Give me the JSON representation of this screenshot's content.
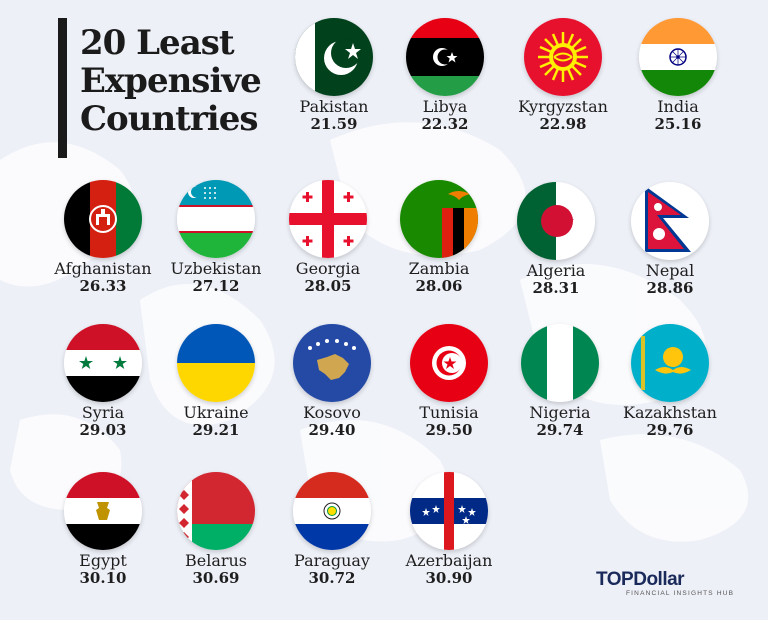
{
  "title": {
    "line1": "20 Least",
    "line2": "Expensive",
    "line3": "Countries"
  },
  "countries": [
    {
      "name": "Pakistan",
      "value": "21.59",
      "flag": "pakistan-flag-icon"
    },
    {
      "name": "Libya",
      "value": "22.32",
      "flag": "libya-flag-icon"
    },
    {
      "name": "Kyrgyzstan",
      "value": "22.98",
      "flag": "kyrgyzstan-flag-icon"
    },
    {
      "name": "India",
      "value": "25.16",
      "flag": "india-flag-icon"
    },
    {
      "name": "Afghanistan",
      "value": "26.33",
      "flag": "afghanistan-flag-icon"
    },
    {
      "name": "Uzbekistan",
      "value": "27.12",
      "flag": "uzbekistan-flag-icon"
    },
    {
      "name": "Georgia",
      "value": "28.05",
      "flag": "georgia-flag-icon"
    },
    {
      "name": "Zambia",
      "value": "28.06",
      "flag": "zambia-flag-icon"
    },
    {
      "name": "Algeria",
      "value": "28.31",
      "flag": "algeria-flag-icon"
    },
    {
      "name": "Nepal",
      "value": "28.86",
      "flag": "nepal-flag-icon"
    },
    {
      "name": "Syria",
      "value": "29.03",
      "flag": "syria-flag-icon"
    },
    {
      "name": "Ukraine",
      "value": "29.21",
      "flag": "ukraine-flag-icon"
    },
    {
      "name": "Kosovo",
      "value": "29.40",
      "flag": "kosovo-flag-icon"
    },
    {
      "name": "Tunisia",
      "value": "29.50",
      "flag": "tunisia-flag-icon"
    },
    {
      "name": "Nigeria",
      "value": "29.74",
      "flag": "nigeria-flag-icon"
    },
    {
      "name": "Kazakhstan",
      "value": "29.76",
      "flag": "kazakhstan-flag-icon"
    },
    {
      "name": "Egypt",
      "value": "30.10",
      "flag": "egypt-flag-icon"
    },
    {
      "name": "Belarus",
      "value": "30.69",
      "flag": "belarus-flag-icon"
    },
    {
      "name": "Paraguay",
      "value": "30.72",
      "flag": "paraguay-flag-icon"
    },
    {
      "name": "Azerbaijan",
      "value": "30.90",
      "flag": "azerbaijan-flag-icon"
    }
  ],
  "logo": {
    "top_part1": "TOP",
    "top_part2": "Dollar",
    "subtitle": "FINANCIAL INSIGHTS HUB"
  },
  "colors": {
    "background": "#eef0f8",
    "title": "#1b1b1b",
    "logo": "#1a2a5a"
  }
}
